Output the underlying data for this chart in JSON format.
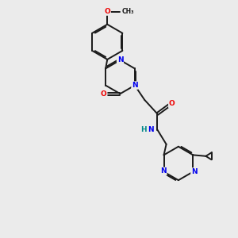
{
  "bg_color": "#ebebeb",
  "bond_color": "#1a1a1a",
  "bond_width": 1.4,
  "atom_colors": {
    "N": "#0000ee",
    "O": "#ee0000",
    "H": "#008888",
    "C": "#1a1a1a"
  },
  "font_size_atom": 6.5,
  "font_size_small": 5.5
}
